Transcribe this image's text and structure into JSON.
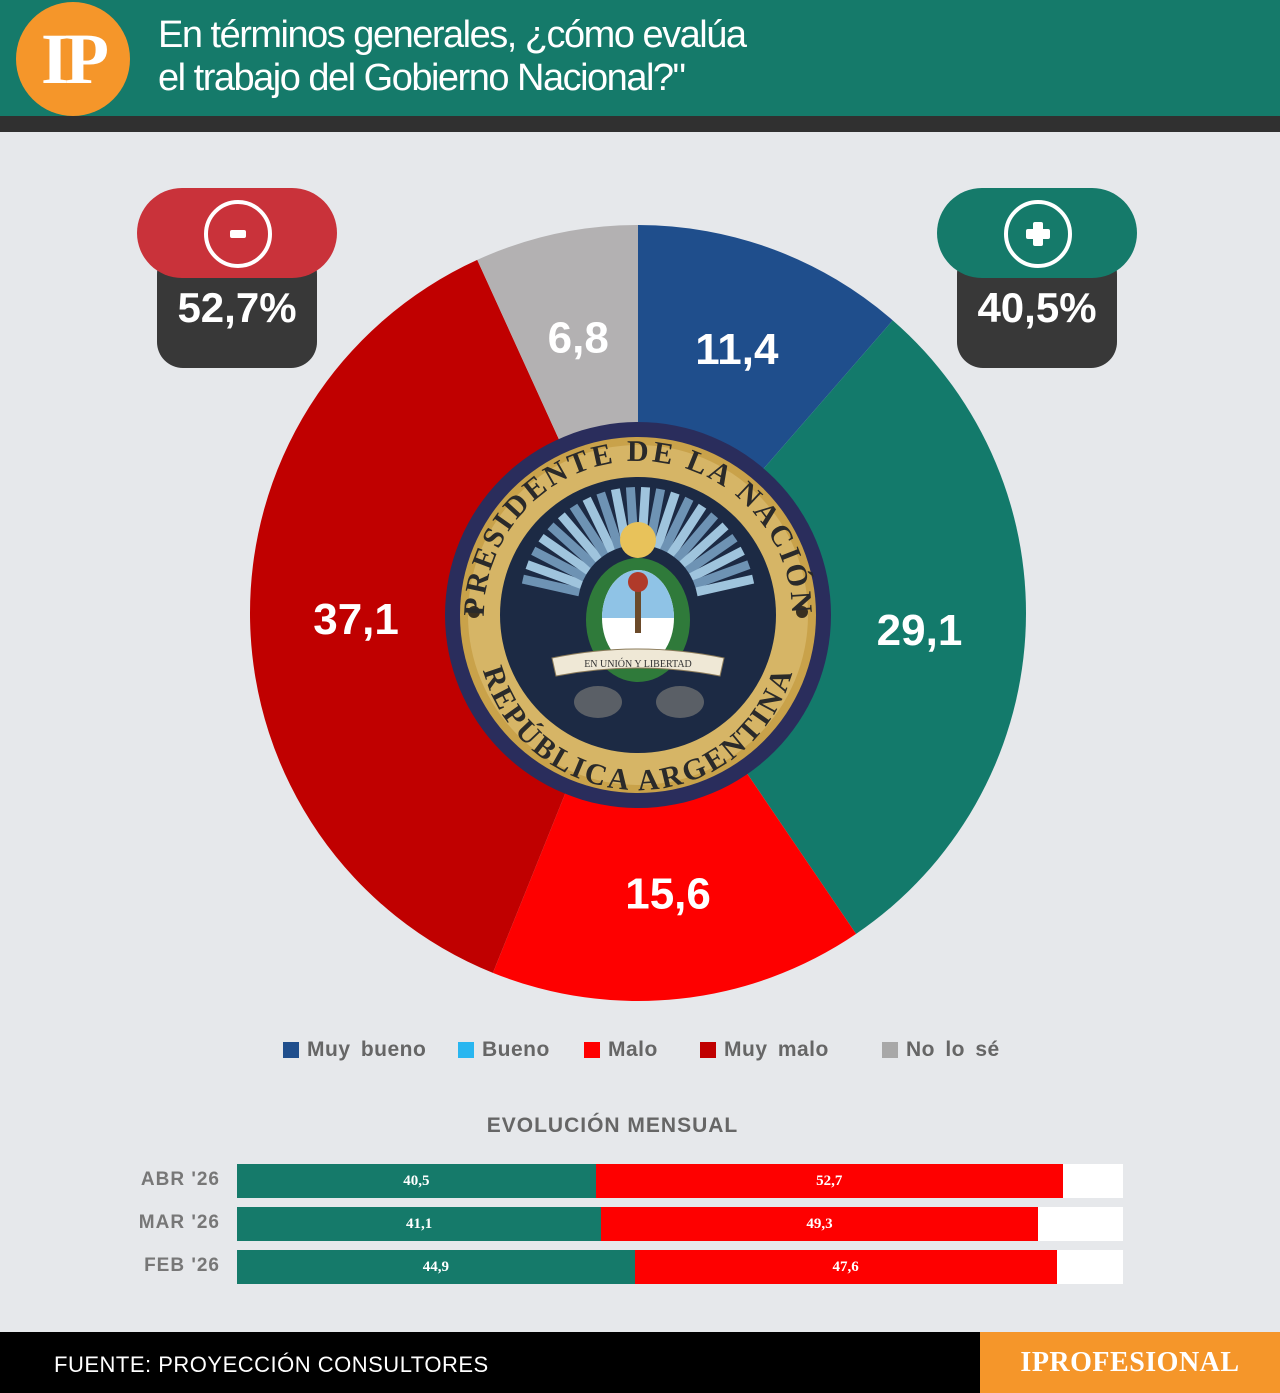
{
  "header": {
    "logo_text": "IP",
    "title_line1": "En términos generales, ¿cómo evalúa",
    "title_line2": "el trabajo del Gobierno Nacional?\""
  },
  "badges": {
    "negative": {
      "symbol": "-",
      "value": "52,7%",
      "color": "#c9323a"
    },
    "positive": {
      "symbol": "+",
      "value": "40,5%",
      "color": "#157a6a"
    }
  },
  "seal": {
    "top_text": "PRESIDENTE DE LA NACIÓN",
    "bottom_text": "REPÚBLICA ARGENTINA",
    "motto": "EN UNIÓN Y LIBERTAD"
  },
  "chart_data": [
    {
      "type": "pie",
      "slices": [
        {
          "label": "Muy bueno",
          "value": 11.4,
          "display": "11,4",
          "color": "#1f4e8c"
        },
        {
          "label": "Bueno",
          "value": 29.1,
          "display": "29,1",
          "color": "#137a6b"
        },
        {
          "label": "Malo",
          "value": 15.6,
          "display": "15,6",
          "color": "#fe0000"
        },
        {
          "label": "Muy malo",
          "value": 37.1,
          "display": "37,1",
          "color": "#c00000"
        },
        {
          "label": "No lo sé",
          "value": 6.8,
          "display": "6,8",
          "color": "#b3b1b2"
        }
      ]
    },
    {
      "type": "bar",
      "title": "EVOLUCIÓN MENSUAL",
      "categories": [
        "ABR '26",
        "MAR '26",
        "FEB '26"
      ],
      "series": [
        {
          "values": [
            40.5,
            41.1,
            44.9
          ],
          "display": [
            "40,5",
            "41,1",
            "44,9"
          ],
          "color": "#157a6a"
        },
        {
          "values": [
            52.7,
            49.3,
            47.6
          ],
          "display": [
            "52,7",
            "49,3",
            "47,6"
          ],
          "color": "#fe0000"
        }
      ]
    }
  ],
  "legend": [
    {
      "label": "Muy bueno",
      "color": "#1f4e8c"
    },
    {
      "label": "Bueno",
      "color": "#29b6f0"
    },
    {
      "label": "Malo",
      "color": "#fe0000"
    },
    {
      "label": "Muy malo",
      "color": "#c00000"
    },
    {
      "label": "No lo sé",
      "color": "#a8a8a8"
    }
  ],
  "footer": {
    "source": "FUENTE: PROYECCIÓN CONSULTORES",
    "brand": "IPROFESIONAL"
  }
}
